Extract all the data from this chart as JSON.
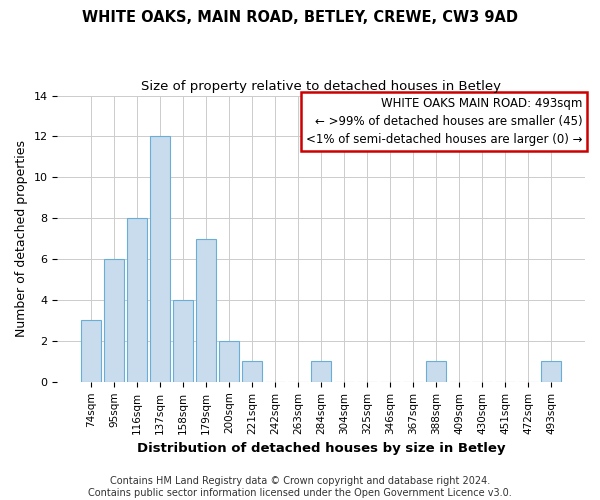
{
  "title": "WHITE OAKS, MAIN ROAD, BETLEY, CREWE, CW3 9AD",
  "subtitle": "Size of property relative to detached houses in Betley",
  "xlabel": "Distribution of detached houses by size in Betley",
  "ylabel": "Number of detached properties",
  "categories": [
    "74sqm",
    "95sqm",
    "116sqm",
    "137sqm",
    "158sqm",
    "179sqm",
    "200sqm",
    "221sqm",
    "242sqm",
    "263sqm",
    "284sqm",
    "304sqm",
    "325sqm",
    "346sqm",
    "367sqm",
    "388sqm",
    "409sqm",
    "430sqm",
    "451sqm",
    "472sqm",
    "493sqm"
  ],
  "values": [
    3,
    6,
    8,
    12,
    4,
    7,
    2,
    1,
    0,
    0,
    1,
    0,
    0,
    0,
    0,
    1,
    0,
    0,
    0,
    0,
    1
  ],
  "bar_color": "#c8dcee",
  "bar_edge_color": "#6aaed6",
  "legend_title": "WHITE OAKS MAIN ROAD: 493sqm",
  "legend_line1": "← >99% of detached houses are smaller (45)",
  "legend_line2": "<1% of semi-detached houses are larger (0) →",
  "legend_box_color": "#cc0000",
  "ylim": [
    0,
    14
  ],
  "yticks": [
    0,
    2,
    4,
    6,
    8,
    10,
    12,
    14
  ],
  "footer_line1": "Contains HM Land Registry data © Crown copyright and database right 2024.",
  "footer_line2": "Contains public sector information licensed under the Open Government Licence v3.0.",
  "background_color": "#ffffff",
  "grid_color": "#cccccc",
  "title_fontsize": 10.5,
  "subtitle_fontsize": 9.5,
  "axis_label_fontsize": 9,
  "tick_fontsize": 7.5,
  "footer_fontsize": 7,
  "legend_fontsize": 8.5
}
